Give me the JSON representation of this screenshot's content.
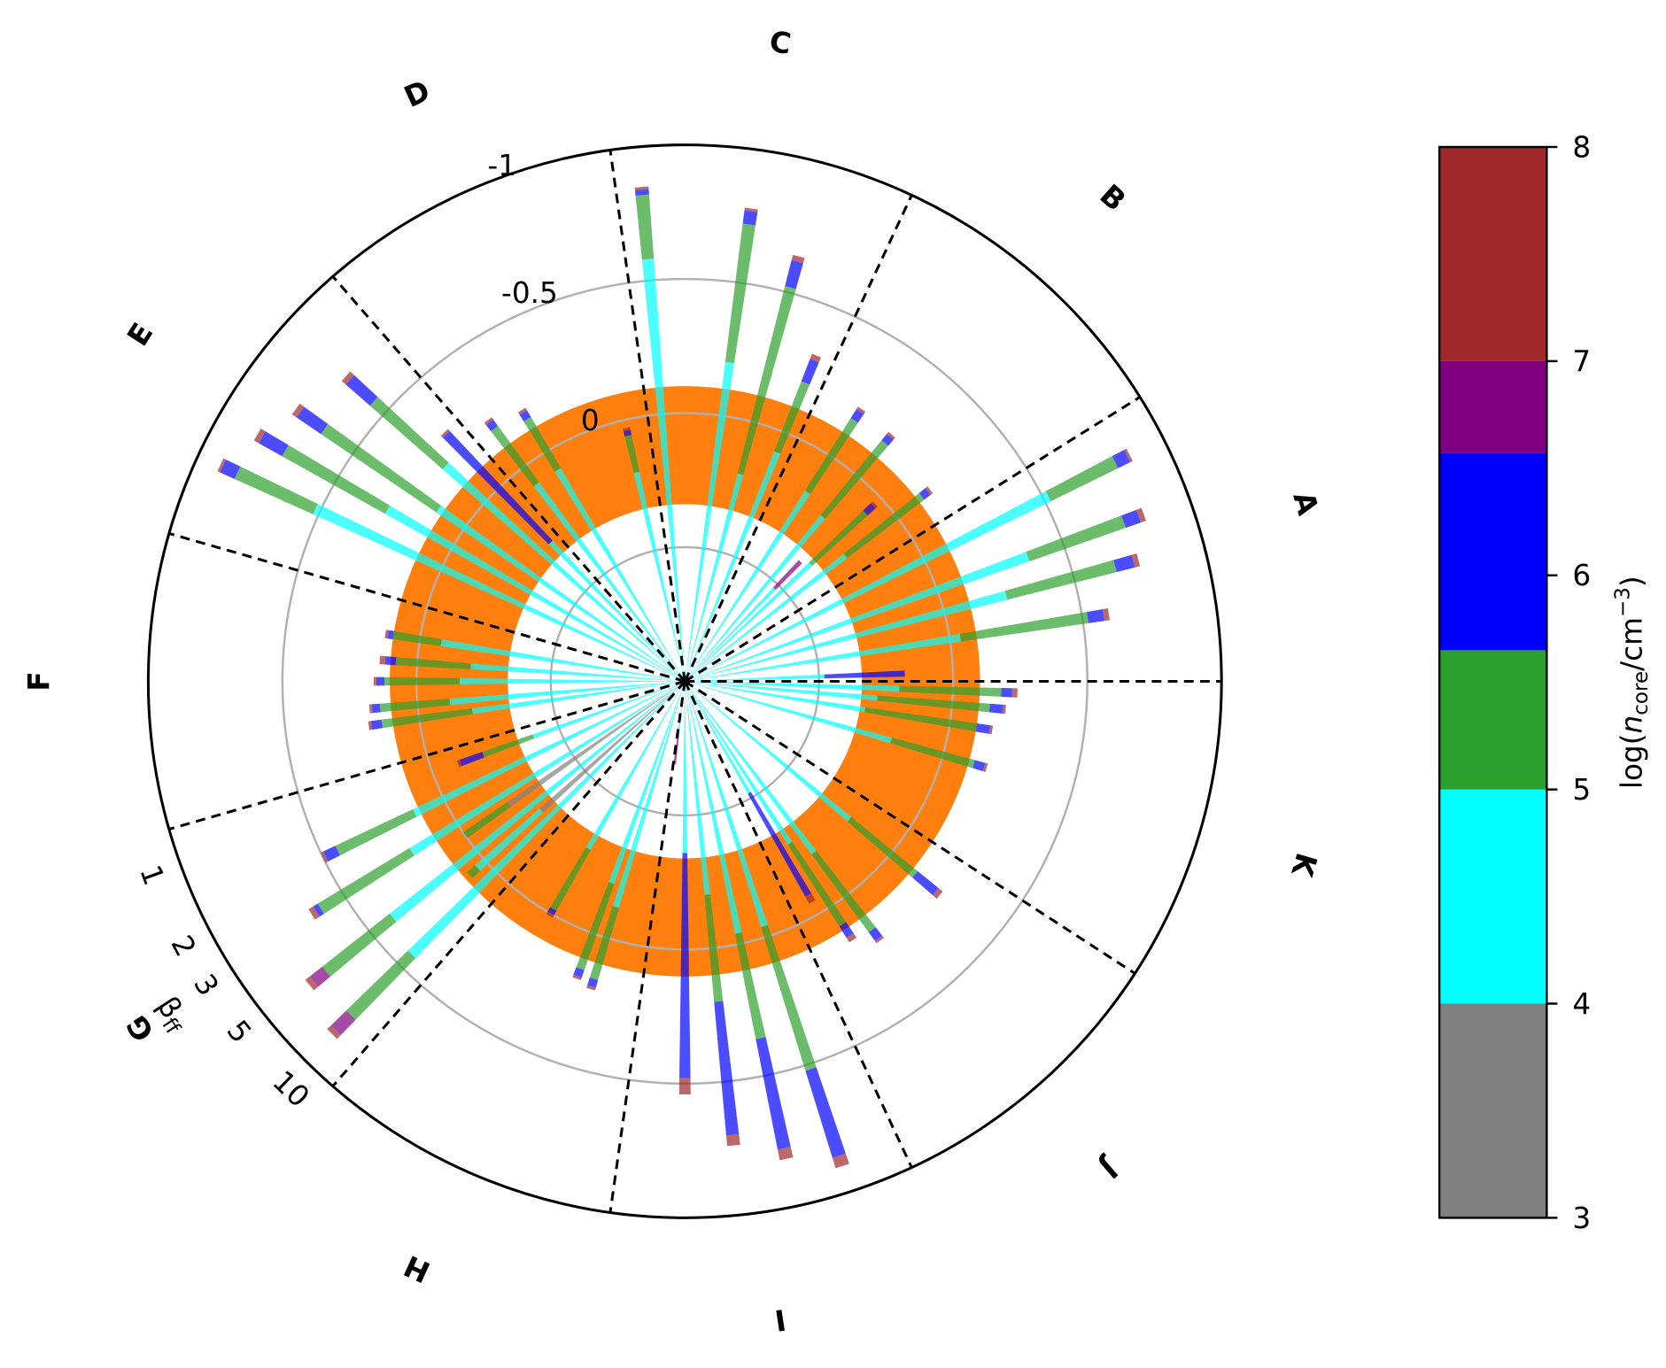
{
  "chart_data": {
    "type": "polar_bar",
    "rlim": [
      1,
      -1
    ],
    "rticks": [
      0,
      -0.5,
      -1
    ],
    "rgrid": [
      0.5,
      0,
      -0.5
    ],
    "band": [
      0.34,
      -0.1
    ],
    "band_color": "#ff7f0e",
    "sector_edges": [
      0,
      32,
      65,
      98,
      131,
      164,
      196,
      229,
      262,
      295,
      327
    ],
    "sectors": [
      "A",
      "B",
      "C",
      "D",
      "E",
      "F",
      "G",
      "H",
      "I",
      "J",
      "K"
    ],
    "sector_color": "#d62728",
    "beta_axis": {
      "label": [
        "β",
        "ff"
      ],
      "ticks": [
        1,
        2,
        3,
        5,
        10
      ],
      "lim": [
        1,
        10
      ],
      "log": true
    },
    "colorbar": {
      "bounds": [
        3,
        4,
        5,
        5.65,
        6.57,
        7,
        8
      ],
      "colors": [
        "#808080",
        "#00ffff",
        "#2ca02c",
        "#0000ff",
        "#800080",
        "#a0282a"
      ],
      "ticks": [
        3,
        4,
        5,
        6,
        7,
        8
      ],
      "label": [
        "log(",
        "n",
        "core",
        "/cm",
        "−3",
        ")"
      ]
    },
    "bars": [
      {
        "theta": 2,
        "edges": [
          1,
          0.48,
          0.18
        ],
        "levels": [
          4.5,
          6
        ]
      },
      {
        "theta": 358,
        "edges": [
          1,
          0.2,
          -0.18,
          -0.22,
          -0.24
        ],
        "levels": [
          4.5,
          5.3,
          6,
          7.5
        ]
      },
      {
        "theta": 355,
        "edges": [
          1,
          0.28,
          -0.14,
          -0.19,
          -0.2
        ],
        "levels": [
          4.5,
          5.3,
          6,
          7.5
        ]
      },
      {
        "theta": 351,
        "edges": [
          1,
          0.32,
          -0.1,
          -0.15,
          -0.16
        ],
        "levels": [
          4.5,
          5.3,
          6,
          7.5
        ]
      },
      {
        "theta": 9,
        "edges": [
          1,
          -0.04,
          -0.52,
          -0.58,
          -0.6
        ],
        "levels": [
          4.5,
          5.3,
          6,
          7.5
        ]
      },
      {
        "theta": 15,
        "edges": [
          1,
          -0.24,
          -0.66,
          -0.73,
          -0.75
        ],
        "levels": [
          4.5,
          5.3,
          6,
          7.5
        ]
      },
      {
        "theta": 20,
        "edges": [
          1,
          -0.36,
          -0.74,
          -0.8,
          -0.82
        ],
        "levels": [
          4.5,
          5.3,
          6,
          7.5
        ]
      },
      {
        "theta": 27,
        "edges": [
          1,
          -0.52,
          -0.8,
          -0.85,
          -0.86
        ],
        "levels": [
          4.5,
          5.3,
          6,
          7.5
        ]
      },
      {
        "theta": 43,
        "edges": [
          1,
          0.36,
          0.08,
          0.04,
          0.03
        ],
        "levels": [
          4.5,
          5.3,
          6,
          7.5
        ]
      },
      {
        "theta": 38,
        "edges": [
          1,
          0.24,
          -0.12,
          -0.15,
          -0.16
        ],
        "levels": [
          4.5,
          5.3,
          6,
          7.5
        ]
      },
      {
        "theta": 50,
        "edges": [
          1,
          0.2,
          -0.16,
          -0.19,
          -0.2
        ],
        "levels": [
          4.5,
          5.3,
          6,
          7.5
        ]
      },
      {
        "theta": 57,
        "edges": [
          1,
          0.16,
          -0.16,
          -0.2,
          -0.21
        ],
        "levels": [
          4.5,
          5.3,
          6,
          7.5
        ]
      },
      {
        "theta": 46,
        "edges": [
          1,
          0.52,
          0.38
        ],
        "levels": [
          4.5,
          6.8
        ]
      },
      {
        "theta": 68,
        "edges": [
          1,
          0.08,
          -0.2,
          -0.29,
          -0.31
        ],
        "levels": [
          4.5,
          5.3,
          6,
          7.5
        ]
      },
      {
        "theta": 75,
        "edges": [
          1,
          0.2,
          -0.52,
          -0.62,
          -0.64
        ],
        "levels": [
          4.5,
          5.3,
          6,
          7.5
        ]
      },
      {
        "theta": 82,
        "edges": [
          1,
          -0.2,
          -0.72,
          -0.77,
          -0.78
        ],
        "levels": [
          4.5,
          5.3,
          6,
          7.5
        ]
      },
      {
        "theta": 95,
        "edges": [
          1,
          -0.58,
          -0.82,
          -0.84,
          -0.85
        ],
        "levels": [
          4.5,
          5.3,
          6,
          7.5
        ]
      },
      {
        "theta": 103,
        "edges": [
          1,
          0.2,
          0.06,
          0.04,
          0.03
        ],
        "levels": [
          4.5,
          5.3,
          6,
          7.5
        ]
      },
      {
        "theta": 121,
        "edges": [
          1,
          0.08,
          -0.14,
          -0.17,
          -0.18
        ],
        "levels": [
          4.5,
          5.3,
          6,
          7.5
        ]
      },
      {
        "theta": 127,
        "edges": [
          1,
          0.08,
          -0.18,
          -0.21,
          -0.22
        ],
        "levels": [
          4.5,
          5.3,
          6,
          7.5
        ]
      },
      {
        "theta": 134,
        "edges": [
          1,
          0.28,
          -0.28,
          -0.29
        ],
        "levels": [
          4.5,
          6,
          7.5
        ]
      },
      {
        "theta": 138,
        "edges": [
          1,
          -0.2,
          -0.56,
          -0.68,
          -0.7
        ],
        "levels": [
          4.5,
          5.3,
          6,
          7.5
        ]
      },
      {
        "theta": 145,
        "edges": [
          1,
          -0.12,
          -0.64,
          -0.75,
          -0.77
        ],
        "levels": [
          4.5,
          5.3,
          6,
          7.5
        ]
      },
      {
        "theta": 150,
        "edges": [
          1,
          -0.28,
          -0.72,
          -0.82,
          -0.84
        ],
        "levels": [
          4.5,
          5.3,
          6,
          7.5
        ]
      },
      {
        "theta": 155,
        "edges": [
          1,
          -0.52,
          -0.84,
          -0.9,
          -0.91
        ],
        "levels": [
          4.5,
          5.3,
          6,
          7.5
        ]
      },
      {
        "theta": 171,
        "edges": [
          1,
          0.08,
          -0.1,
          -0.12,
          -0.13
        ],
        "levels": [
          4.5,
          5.3,
          6,
          7.5
        ]
      },
      {
        "theta": 176,
        "edges": [
          1,
          0.2,
          -0.08,
          -0.12,
          -0.14
        ],
        "levels": [
          4.5,
          5.3,
          6,
          7.5
        ]
      },
      {
        "theta": 180,
        "edges": [
          1,
          0.16,
          -0.12,
          -0.15,
          -0.16
        ],
        "levels": [
          4.5,
          5.3,
          6,
          7.5
        ]
      },
      {
        "theta": 185,
        "edges": [
          1,
          0.12,
          -0.14,
          -0.17,
          -0.18
        ],
        "levels": [
          4.5,
          5.3,
          6,
          7.5
        ]
      },
      {
        "theta": 188,
        "edges": [
          1,
          0.2,
          -0.14,
          -0.18,
          -0.19
        ],
        "levels": [
          4.5,
          5.3,
          6,
          7.5
        ]
      },
      {
        "theta": 200,
        "edges": [
          1,
          0.4,
          0.2,
          0.11,
          0.1
        ],
        "levels": [
          4.5,
          5.3,
          6,
          7.5
        ]
      },
      {
        "theta": 206,
        "edges": [
          1,
          -0.12,
          -0.44,
          -0.49,
          -0.5
        ],
        "levels": [
          4.5,
          5.3,
          6,
          7.5
        ]
      },
      {
        "theta": 212,
        "edges": [
          1,
          -0.2,
          -0.6,
          -0.62,
          -0.64
        ],
        "levels": [
          4.5,
          5.3,
          6,
          7.5
        ]
      },
      {
        "theta": 219,
        "edges": [
          1,
          -0.4,
          -0.72,
          -0.78,
          -0.8
        ],
        "levels": [
          4.5,
          5.3,
          6.8,
          7.5
        ]
      },
      {
        "theta": 225,
        "edges": [
          1,
          -0.44,
          -0.76,
          -0.84,
          -0.86
        ],
        "levels": [
          4.5,
          5.3,
          6.8,
          7.5
        ]
      },
      {
        "theta": 215,
        "edges": [
          1,
          0.2,
          0
        ],
        "levels": [
          3.5,
          5.3
        ]
      },
      {
        "theta": 222,
        "edges": [
          1,
          0.28,
          -0.04,
          -0.08
        ],
        "levels": [
          3.5,
          4.5,
          5.3
        ]
      },
      {
        "theta": 240,
        "edges": [
          1,
          0.28,
          0.02,
          0,
          -0.01
        ],
        "levels": [
          4.5,
          5.3,
          6,
          7.5
        ]
      },
      {
        "theta": 250,
        "edges": [
          1,
          0.2,
          -0.14,
          -0.17,
          -0.18
        ],
        "levels": [
          4.5,
          5.3,
          6,
          7.5
        ]
      },
      {
        "theta": 253,
        "edges": [
          1,
          0.12,
          -0.16,
          -0.19,
          -0.2
        ],
        "levels": [
          4.5,
          5.3,
          6,
          7.5
        ]
      },
      {
        "theta": 263,
        "edges": [
          1,
          0.8,
          0.69
        ],
        "levels": [
          4.5,
          6.8
        ]
      },
      {
        "theta": 270,
        "edges": [
          1,
          0.36,
          -0.48,
          -0.54
        ],
        "levels": [
          4.5,
          6,
          7.5
        ]
      },
      {
        "theta": 276,
        "edges": [
          1,
          0.2,
          -0.2,
          -0.7,
          -0.74
        ],
        "levels": [
          4.5,
          5.3,
          6,
          7.5
        ]
      },
      {
        "theta": 282,
        "edges": [
          1,
          0.04,
          -0.36,
          -0.78,
          -0.82
        ],
        "levels": [
          4.5,
          5.3,
          6,
          7.5
        ]
      },
      {
        "theta": 288,
        "edges": [
          1,
          0.04,
          -0.52,
          -0.86,
          -0.9
        ],
        "levels": [
          4.5,
          5.3,
          6,
          7.5
        ]
      },
      {
        "theta": 300,
        "edges": [
          1,
          0.52,
          0.08,
          0.05
        ],
        "levels": [
          4.5,
          6,
          7.5
        ]
      },
      {
        "theta": 303,
        "edges": [
          1,
          0.28,
          -0.08,
          -0.13,
          -0.15
        ],
        "levels": [
          4.5,
          5.3,
          6,
          7.5
        ]
      },
      {
        "theta": 307,
        "edges": [
          1,
          0.2,
          -0.16,
          -0.2,
          -0.21
        ],
        "levels": [
          4.5,
          5.3,
          6,
          7.5
        ]
      },
      {
        "theta": 320,
        "edges": [
          1,
          0.2,
          -0.12,
          -0.22,
          -0.24
        ],
        "levels": [
          4.5,
          5.3,
          6,
          7.5
        ]
      },
      {
        "theta": 344,
        "edges": [
          1,
          0.2,
          -0.12,
          -0.16,
          -0.17
        ],
        "levels": [
          4.5,
          5.3,
          6,
          7.5
        ]
      }
    ]
  }
}
